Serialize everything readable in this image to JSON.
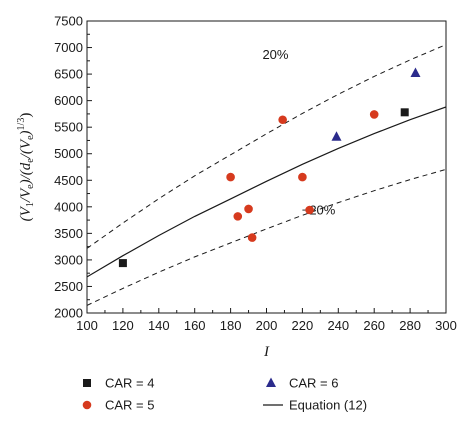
{
  "chart_data": {
    "type": "scatter",
    "xlabel": "I",
    "ylabel_parts": [
      "(V",
      "1",
      "/V",
      "e",
      ")/(d",
      "e",
      "/(V",
      "e",
      ")",
      "1/3",
      ")"
    ],
    "xlim": [
      100,
      300
    ],
    "ylim": [
      2000,
      7500
    ],
    "xticks": [
      "100",
      "120",
      "140",
      "160",
      "180",
      "200",
      "220",
      "240",
      "260",
      "280",
      "300"
    ],
    "yticks": [
      "2000",
      "2500",
      "3000",
      "3500",
      "4000",
      "4500",
      "5000",
      "5500",
      "6000",
      "6500",
      "7000",
      "7500"
    ],
    "grid": false,
    "legend_position": "bottom",
    "series": [
      {
        "name": "CAR = 4",
        "marker": "square",
        "color": "#1a1a1a",
        "points": [
          [
            120,
            2940
          ],
          [
            277,
            5780
          ]
        ]
      },
      {
        "name": "CAR = 5",
        "marker": "circle",
        "color": "#d63a1e",
        "points": [
          [
            180,
            4560
          ],
          [
            184,
            3820
          ],
          [
            190,
            3960
          ],
          [
            192,
            3420
          ],
          [
            209,
            5640
          ],
          [
            220,
            4560
          ],
          [
            224,
            3940
          ],
          [
            260,
            5740
          ]
        ]
      },
      {
        "name": "CAR = 6",
        "marker": "triangle",
        "color": "#2b2b8c",
        "points": [
          [
            239,
            5320
          ],
          [
            283,
            6520
          ]
        ]
      },
      {
        "name": "Equation (12)",
        "marker": "line",
        "style": "solid",
        "color": "#1a1a1a",
        "points": [
          [
            100,
            2680
          ],
          [
            120,
            3080
          ],
          [
            140,
            3460
          ],
          [
            160,
            3820
          ],
          [
            180,
            4150
          ],
          [
            200,
            4480
          ],
          [
            220,
            4800
          ],
          [
            240,
            5100
          ],
          [
            260,
            5380
          ],
          [
            280,
            5640
          ],
          [
            300,
            5880
          ]
        ]
      }
    ],
    "bands": [
      {
        "label": "20%",
        "style": "dashed",
        "factor": 1.2,
        "label_at": [
          205,
          6780
        ]
      },
      {
        "label": "−20%",
        "style": "dashed",
        "factor": 0.8,
        "label_at": [
          229,
          3860
        ]
      }
    ]
  }
}
